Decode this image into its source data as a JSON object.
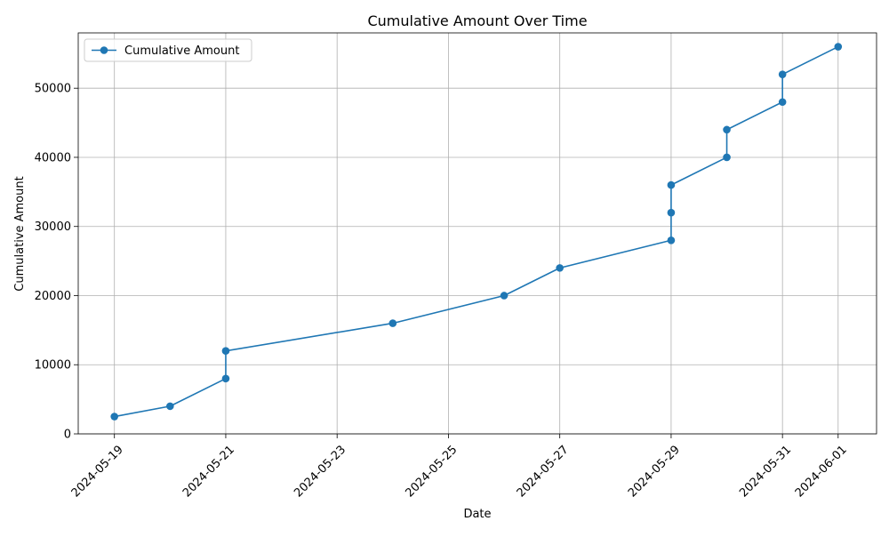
{
  "chart_data": {
    "type": "line",
    "title": "Cumulative Amount Over Time",
    "xlabel": "Date",
    "ylabel": "Cumulative Amount",
    "x_axis_type": "date",
    "xlim": [
      "2024-05-18",
      "2024-06-01"
    ],
    "ylim": [
      0,
      58000
    ],
    "x_ticks": [
      "2024-05-19",
      "2024-05-21",
      "2024-05-23",
      "2024-05-25",
      "2024-05-27",
      "2024-05-29",
      "2024-05-31",
      "2024-06-01"
    ],
    "y_ticks": [
      0,
      10000,
      20000,
      30000,
      40000,
      50000
    ],
    "grid": true,
    "legend_position": "top-left",
    "series": [
      {
        "name": "Cumulative Amount",
        "color": "#1f77b4",
        "marker": "circle",
        "points": [
          {
            "x": "2024-05-19",
            "y": 2500
          },
          {
            "x": "2024-05-20",
            "y": 4000
          },
          {
            "x": "2024-05-21",
            "y": 8000
          },
          {
            "x": "2024-05-21",
            "y": 12000
          },
          {
            "x": "2024-05-24",
            "y": 16000
          },
          {
            "x": "2024-05-26",
            "y": 20000
          },
          {
            "x": "2024-05-27",
            "y": 24000
          },
          {
            "x": "2024-05-29",
            "y": 28000
          },
          {
            "x": "2024-05-29",
            "y": 32000
          },
          {
            "x": "2024-05-29",
            "y": 36000
          },
          {
            "x": "2024-05-30",
            "y": 40000
          },
          {
            "x": "2024-05-30",
            "y": 44000
          },
          {
            "x": "2024-05-31",
            "y": 48000
          },
          {
            "x": "2024-05-31",
            "y": 52000
          },
          {
            "x": "2024-06-01",
            "y": 56000
          }
        ]
      }
    ]
  }
}
